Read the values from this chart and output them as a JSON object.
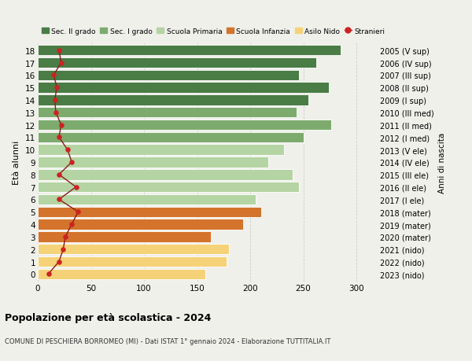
{
  "ages": [
    18,
    17,
    16,
    15,
    14,
    13,
    12,
    11,
    10,
    9,
    8,
    7,
    6,
    5,
    4,
    3,
    2,
    1,
    0
  ],
  "years": [
    "2005 (V sup)",
    "2006 (IV sup)",
    "2007 (III sup)",
    "2008 (II sup)",
    "2009 (I sup)",
    "2010 (III med)",
    "2011 (II med)",
    "2012 (I med)",
    "2013 (V ele)",
    "2014 (IV ele)",
    "2015 (III ele)",
    "2016 (II ele)",
    "2017 (I ele)",
    "2018 (mater)",
    "2019 (mater)",
    "2020 (mater)",
    "2021 (nido)",
    "2022 (nido)",
    "2023 (nido)"
  ],
  "bar_values": [
    285,
    262,
    246,
    274,
    255,
    244,
    276,
    250,
    232,
    217,
    240,
    246,
    205,
    210,
    193,
    163,
    180,
    178,
    158
  ],
  "stranieri": [
    20,
    22,
    15,
    18,
    16,
    17,
    22,
    20,
    28,
    32,
    20,
    36,
    20,
    38,
    32,
    26,
    24,
    20,
    10
  ],
  "colors": {
    "sec2": "#4a7c45",
    "sec1": "#7dab6e",
    "primaria": "#b5d4a3",
    "infanzia": "#d4732b",
    "nido": "#f5d278",
    "stranieri_line": "#8b1a1a",
    "stranieri_dot": "#cc2222"
  },
  "legend_labels": [
    "Sec. II grado",
    "Sec. I grado",
    "Scuola Primaria",
    "Scuola Infanzia",
    "Asilo Nido",
    "Stranieri"
  ],
  "ylabel": "Età alunni",
  "ylabel_right": "Anni di nascita",
  "xlim": [
    0,
    320
  ],
  "xticks": [
    0,
    50,
    100,
    150,
    200,
    250,
    300
  ],
  "title": "Popolazione per età scolastica - 2024",
  "subtitle": "COMUNE DI PESCHIERA BORROMEO (MI) - Dati ISTAT 1° gennaio 2024 - Elaborazione TUTTITALIA.IT",
  "background_color": "#f0f0eb",
  "grid_color": "#cccccc"
}
